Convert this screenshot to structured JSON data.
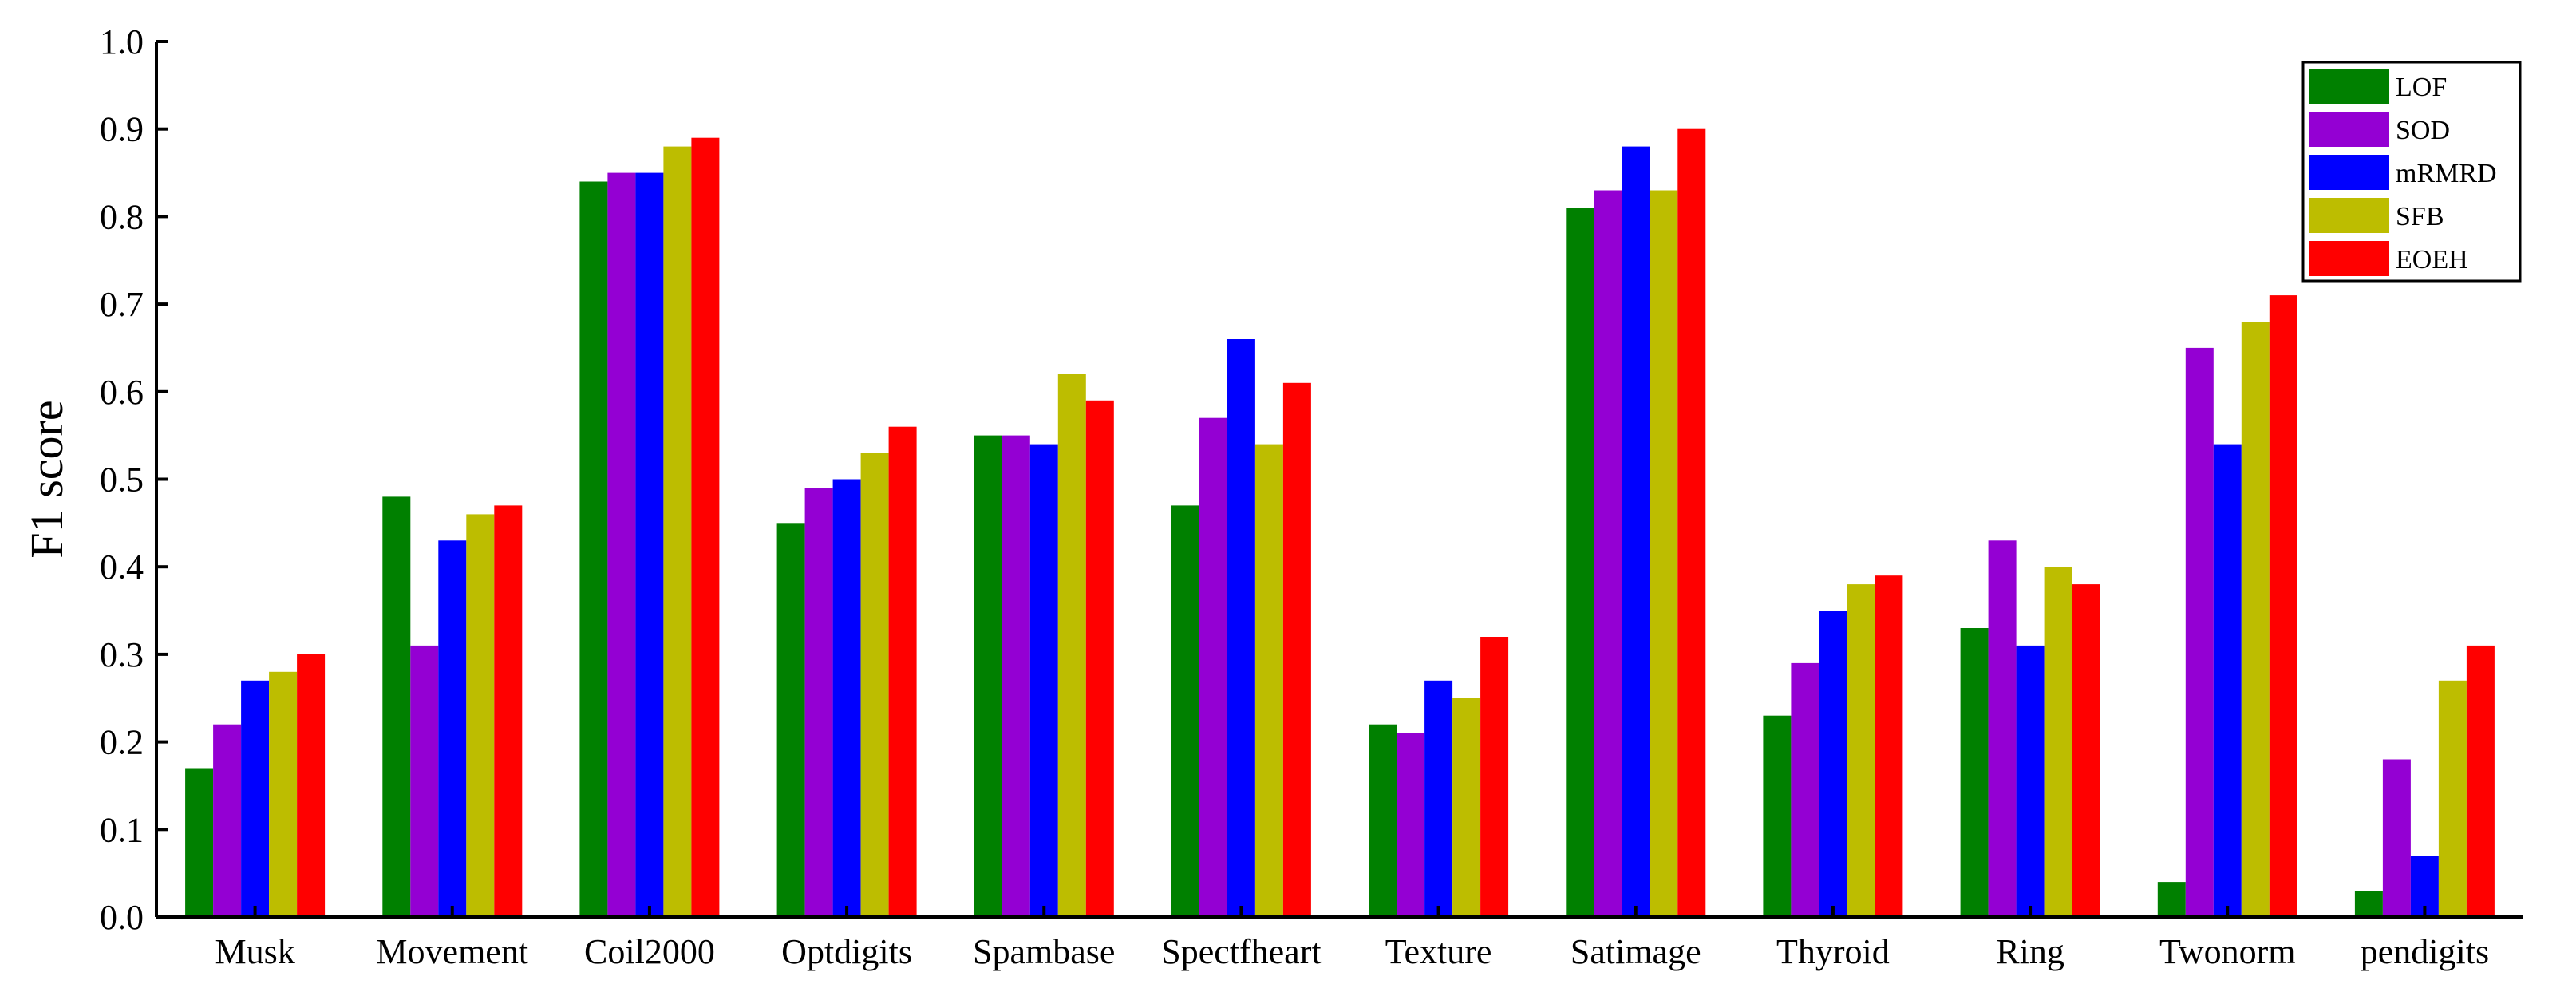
{
  "chart_data": {
    "type": "bar",
    "ylabel": "F1 score",
    "xlabel": "",
    "ylim": [
      0,
      1.0
    ],
    "yticks": [
      "0.0",
      "0.1",
      "0.2",
      "0.3",
      "0.4",
      "0.5",
      "0.6",
      "0.7",
      "0.8",
      "0.9",
      "1.0"
    ],
    "grid": false,
    "legend_position": "top-right",
    "categories": [
      "Musk",
      "Movement",
      "Coil2000",
      "Optdigits",
      "Spambase",
      "Spectfheart",
      "Texture",
      "Satimage",
      "Thyroid",
      "Ring",
      "Twonorm",
      "pendigits"
    ],
    "series": [
      {
        "name": "LOF",
        "color": "#008000",
        "values": [
          0.17,
          0.48,
          0.84,
          0.45,
          0.55,
          0.47,
          0.22,
          0.81,
          0.23,
          0.33,
          0.04,
          0.03
        ]
      },
      {
        "name": "SOD",
        "color": "#9400D3",
        "values": [
          0.22,
          0.31,
          0.85,
          0.49,
          0.55,
          0.57,
          0.21,
          0.83,
          0.29,
          0.43,
          0.65,
          0.18
        ]
      },
      {
        "name": "mRMRD",
        "color": "#0000FF",
        "values": [
          0.27,
          0.43,
          0.85,
          0.5,
          0.54,
          0.66,
          0.27,
          0.88,
          0.35,
          0.31,
          0.54,
          0.07
        ]
      },
      {
        "name": "SFB",
        "color": "#BDBD00",
        "values": [
          0.28,
          0.46,
          0.88,
          0.53,
          0.62,
          0.54,
          0.25,
          0.83,
          0.38,
          0.4,
          0.68,
          0.27
        ]
      },
      {
        "name": "EOEH",
        "color": "#FF0000",
        "values": [
          0.3,
          0.47,
          0.89,
          0.56,
          0.59,
          0.61,
          0.32,
          0.9,
          0.39,
          0.38,
          0.71,
          0.31
        ]
      }
    ]
  }
}
